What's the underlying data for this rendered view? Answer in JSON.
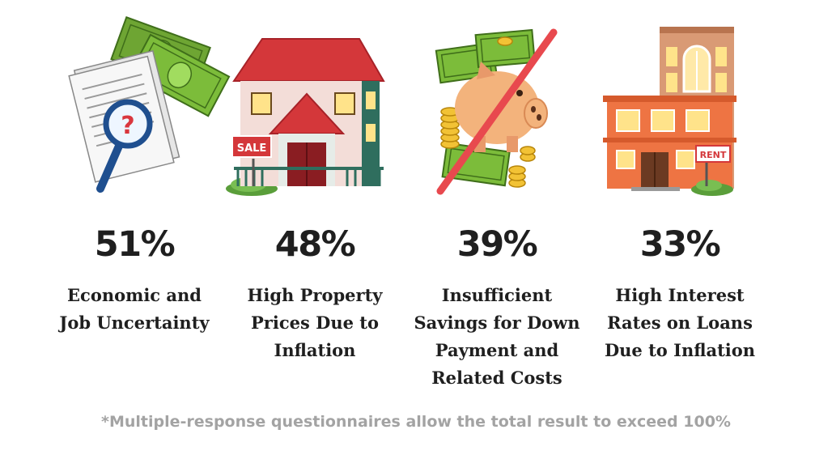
{
  "stats": [
    {
      "percent": "51%",
      "lines": [
        "Economic and",
        "Job Uncertainty"
      ],
      "icon": "documents-money-magnifier-icon"
    },
    {
      "percent": "48%",
      "lines": [
        "High Property",
        "Prices Due to",
        "Inflation"
      ],
      "icon": "house-for-sale-icon",
      "sign": "SALE"
    },
    {
      "percent": "39%",
      "lines": [
        "Insufficient",
        "Savings for Down",
        "Payment and",
        "Related Costs"
      ],
      "icon": "crossed-piggy-bank-icon"
    },
    {
      "percent": "33%",
      "lines": [
        "High Interest",
        "Rates on Loans",
        "Due to Inflation"
      ],
      "icon": "rental-building-icon",
      "sign": "RENT"
    }
  ],
  "footnote": "*Multiple-response questionnaires allow the total result to exceed 100%",
  "colors": {
    "text": "#1f1f1f",
    "footnote": "#a3a3a3",
    "money": "#7cbc3a",
    "roof": "#d4373a",
    "piggy": "#f3b37c",
    "brick": "#ee7443"
  }
}
